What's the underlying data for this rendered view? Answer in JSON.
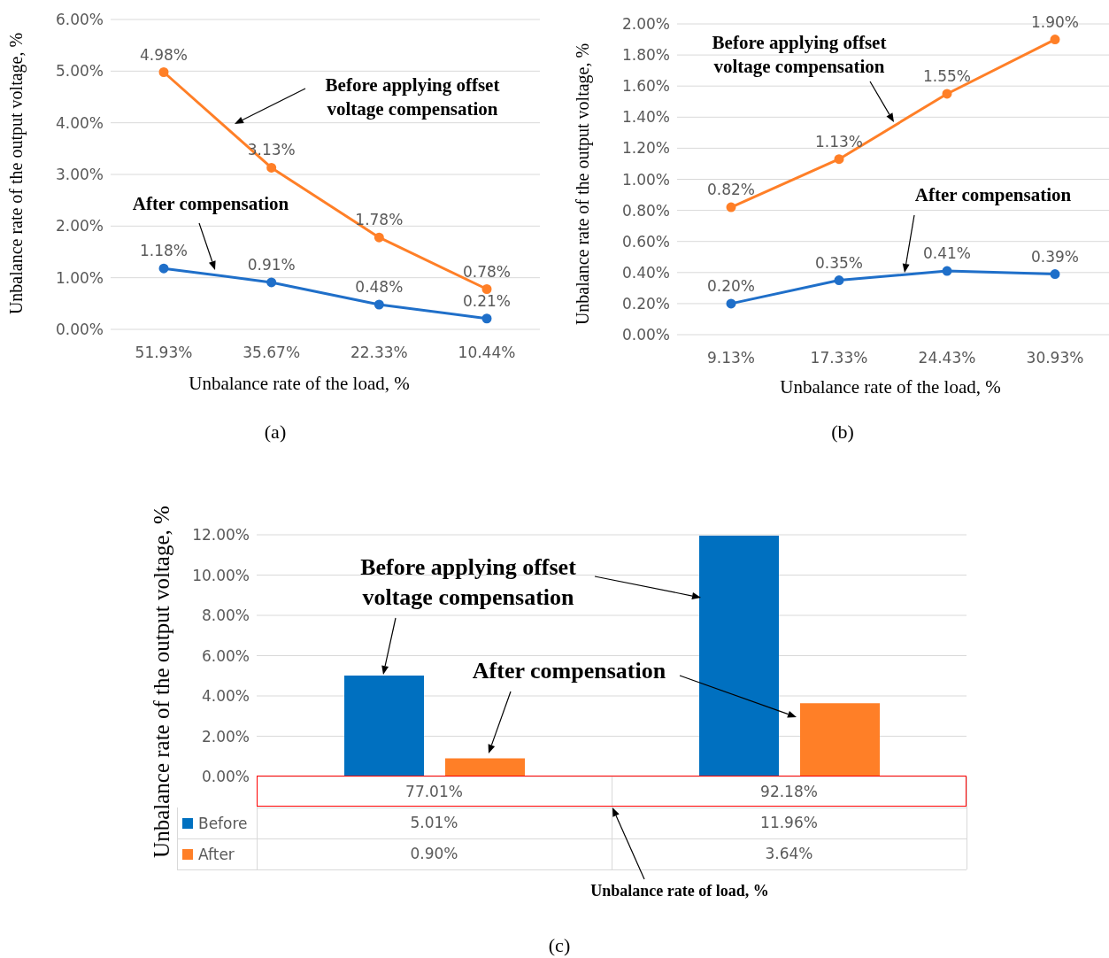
{
  "chart_data": [
    {
      "type": "line",
      "categories": [
        "51.93%",
        "35.67%",
        "22.33%",
        "10.44%"
      ],
      "xlabel": "Unbalance rate of the load, %",
      "ylabel": "Unbalance rate of the output voltage, %",
      "ylim": [
        0,
        6
      ],
      "yticks": [
        {
          "value": 0,
          "label": "0.00%"
        },
        {
          "value": 1,
          "label": "1.00%"
        },
        {
          "value": 2,
          "label": "2.00%"
        },
        {
          "value": 3,
          "label": "3.00%"
        },
        {
          "value": 4,
          "label": "4.00%"
        },
        {
          "value": 5,
          "label": "5.00%"
        },
        {
          "value": 6,
          "label": "6.00%"
        }
      ],
      "grid": "y",
      "marker": "circle",
      "line_style": "solid",
      "annotations": [
        "Before applying offset voltage compensation",
        "After compensation",
        "(a)"
      ],
      "series": [
        {
          "color": "#ff7f27",
          "values": [
            4.98,
            3.13,
            1.78,
            0.78
          ],
          "value_labels": [
            "4.98%",
            "3.13%",
            "1.78%",
            "0.78%"
          ]
        },
        {
          "color": "#1f6fc9",
          "values": [
            1.18,
            0.91,
            0.48,
            0.21
          ],
          "value_labels": [
            "1.18%",
            "0.91%",
            "0.48%",
            "0.21%"
          ]
        }
      ]
    },
    {
      "type": "line",
      "categories": [
        "9.13%",
        "17.33%",
        "24.43%",
        "30.93%"
      ],
      "xlabel": "Unbalance rate of the load, %",
      "ylabel": "Unbalance rate of the output voltage, %",
      "ylim": [
        0,
        2
      ],
      "yticks": [
        {
          "value": 0,
          "label": "0.00%"
        },
        {
          "value": 0.2,
          "label": "0.20%"
        },
        {
          "value": 0.4,
          "label": "0.40%"
        },
        {
          "value": 0.6,
          "label": "0.60%"
        },
        {
          "value": 0.8,
          "label": "0.80%"
        },
        {
          "value": 1,
          "label": "1.00%"
        },
        {
          "value": 1.2,
          "label": "1.20%"
        },
        {
          "value": 1.4,
          "label": "1.40%"
        },
        {
          "value": 1.6,
          "label": "1.60%"
        },
        {
          "value": 1.8,
          "label": "1.80%"
        },
        {
          "value": 2,
          "label": "2.00%"
        }
      ],
      "grid": "y",
      "marker": "circle",
      "line_style": "solid",
      "annotations": [
        "Before applying offset voltage compensation",
        "After compensation",
        "(b)"
      ],
      "series": [
        {
          "color": "#ff7f27",
          "values": [
            0.82,
            1.13,
            1.55,
            1.9
          ],
          "value_labels": [
            "0.82%",
            "1.13%",
            "1.55%",
            "1.90%"
          ]
        },
        {
          "color": "#1f6fc9",
          "values": [
            0.2,
            0.35,
            0.41,
            0.39
          ],
          "value_labels": [
            "0.20%",
            "0.35%",
            "0.41%",
            "0.39%"
          ]
        }
      ]
    },
    {
      "type": "bar",
      "categories": [
        "77.01%",
        "92.18%"
      ],
      "xlabel": "Unbalance rate of load, %",
      "ylabel": "Unbalance rate of the output voltage, %",
      "ylim": [
        0,
        12
      ],
      "yticks": [
        {
          "value": 0,
          "label": "0.00%"
        },
        {
          "value": 2,
          "label": "2.00%"
        },
        {
          "value": 4,
          "label": "4.00%"
        },
        {
          "value": 6,
          "label": "6.00%"
        },
        {
          "value": 8,
          "label": "8.00%"
        },
        {
          "value": 10,
          "label": "10.00%"
        },
        {
          "value": 12,
          "label": "12.00%"
        }
      ],
      "grid": "y",
      "legend": "left",
      "annotations": [
        "Before applying offset voltage compensation",
        "After compensation",
        "(c)"
      ],
      "series": [
        {
          "name": "Before",
          "color": "#0070c0",
          "values": [
            5.01,
            11.96
          ],
          "value_labels": [
            "5.01%",
            "11.96%"
          ]
        },
        {
          "name": "After",
          "color": "#ff7f27",
          "values": [
            0.9,
            3.64
          ],
          "value_labels": [
            "0.90%",
            "3.64%"
          ]
        }
      ]
    }
  ]
}
